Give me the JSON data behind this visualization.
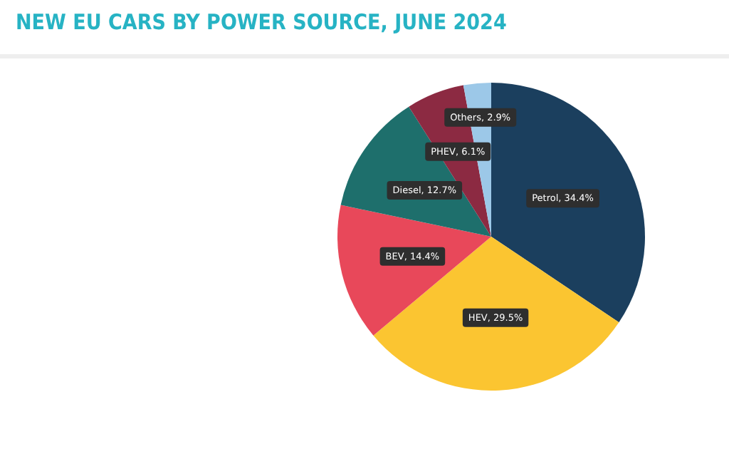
{
  "chart_data": {
    "type": "pie",
    "title": "NEW EU CARS BY POWER SOURCE, JUNE 2024",
    "categories": [
      "Petrol",
      "HEV",
      "BEV",
      "Diesel",
      "PHEV",
      "Others"
    ],
    "values": [
      34.4,
      29.5,
      14.4,
      12.7,
      6.1,
      2.9
    ],
    "value_labels": [
      "34.4%",
      "29.5%",
      "14.4%",
      "12.7%",
      "6.1%",
      "2.9%"
    ],
    "colors": [
      "#1b3f5e",
      "#fbc531",
      "#e8485a",
      "#1e6f6c",
      "#8c2a42",
      "#9cc8e8"
    ],
    "legend": false
  }
}
